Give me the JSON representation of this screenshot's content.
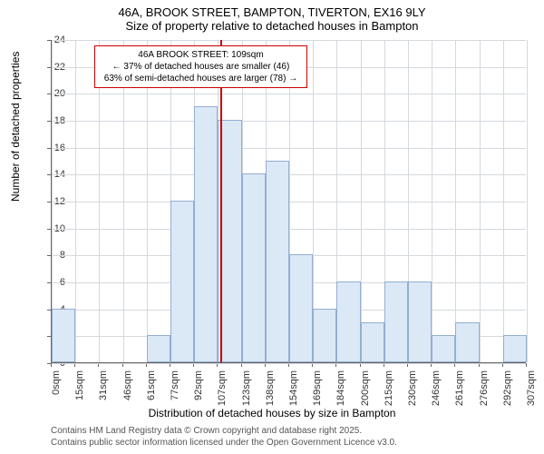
{
  "title": "46A, BROOK STREET, BAMPTON, TIVERTON, EX16 9LY",
  "subtitle": "Size of property relative to detached houses in Bampton",
  "xlabel": "Distribution of detached houses by size in Bampton",
  "ylabel": "Number of detached properties",
  "chart": {
    "type": "histogram",
    "background_color": "#ffffff",
    "grid_color": "#d4d9de",
    "bar_fill": "#dbe8f6",
    "bar_border": "#95aed0",
    "reference_color": "#cc0000",
    "ylim": [
      0,
      24
    ],
    "ytick_step": 2,
    "yticks": [
      0,
      2,
      4,
      6,
      8,
      10,
      12,
      14,
      16,
      18,
      20,
      22,
      24
    ],
    "xticks": [
      "0sqm",
      "15sqm",
      "31sqm",
      "46sqm",
      "61sqm",
      "77sqm",
      "92sqm",
      "107sqm",
      "123sqm",
      "138sqm",
      "154sqm",
      "169sqm",
      "184sqm",
      "200sqm",
      "215sqm",
      "230sqm",
      "246sqm",
      "261sqm",
      "276sqm",
      "292sqm",
      "307sqm"
    ],
    "values": [
      4,
      0,
      0,
      0,
      2,
      12,
      19,
      18,
      14,
      15,
      8,
      4,
      6,
      3,
      6,
      6,
      2,
      3,
      0,
      2
    ],
    "reference_x": 109,
    "x_max": 307,
    "annotation": {
      "line1": "46A BROOK STREET: 109sqm",
      "line2": "← 37% of detached houses are smaller (46)",
      "line3": "63% of semi-detached houses are larger (78) →"
    }
  },
  "attribution": {
    "line1": "Contains HM Land Registry data © Crown copyright and database right 2025.",
    "line2": "Contains public sector information licensed under the Open Government Licence v3.0."
  }
}
